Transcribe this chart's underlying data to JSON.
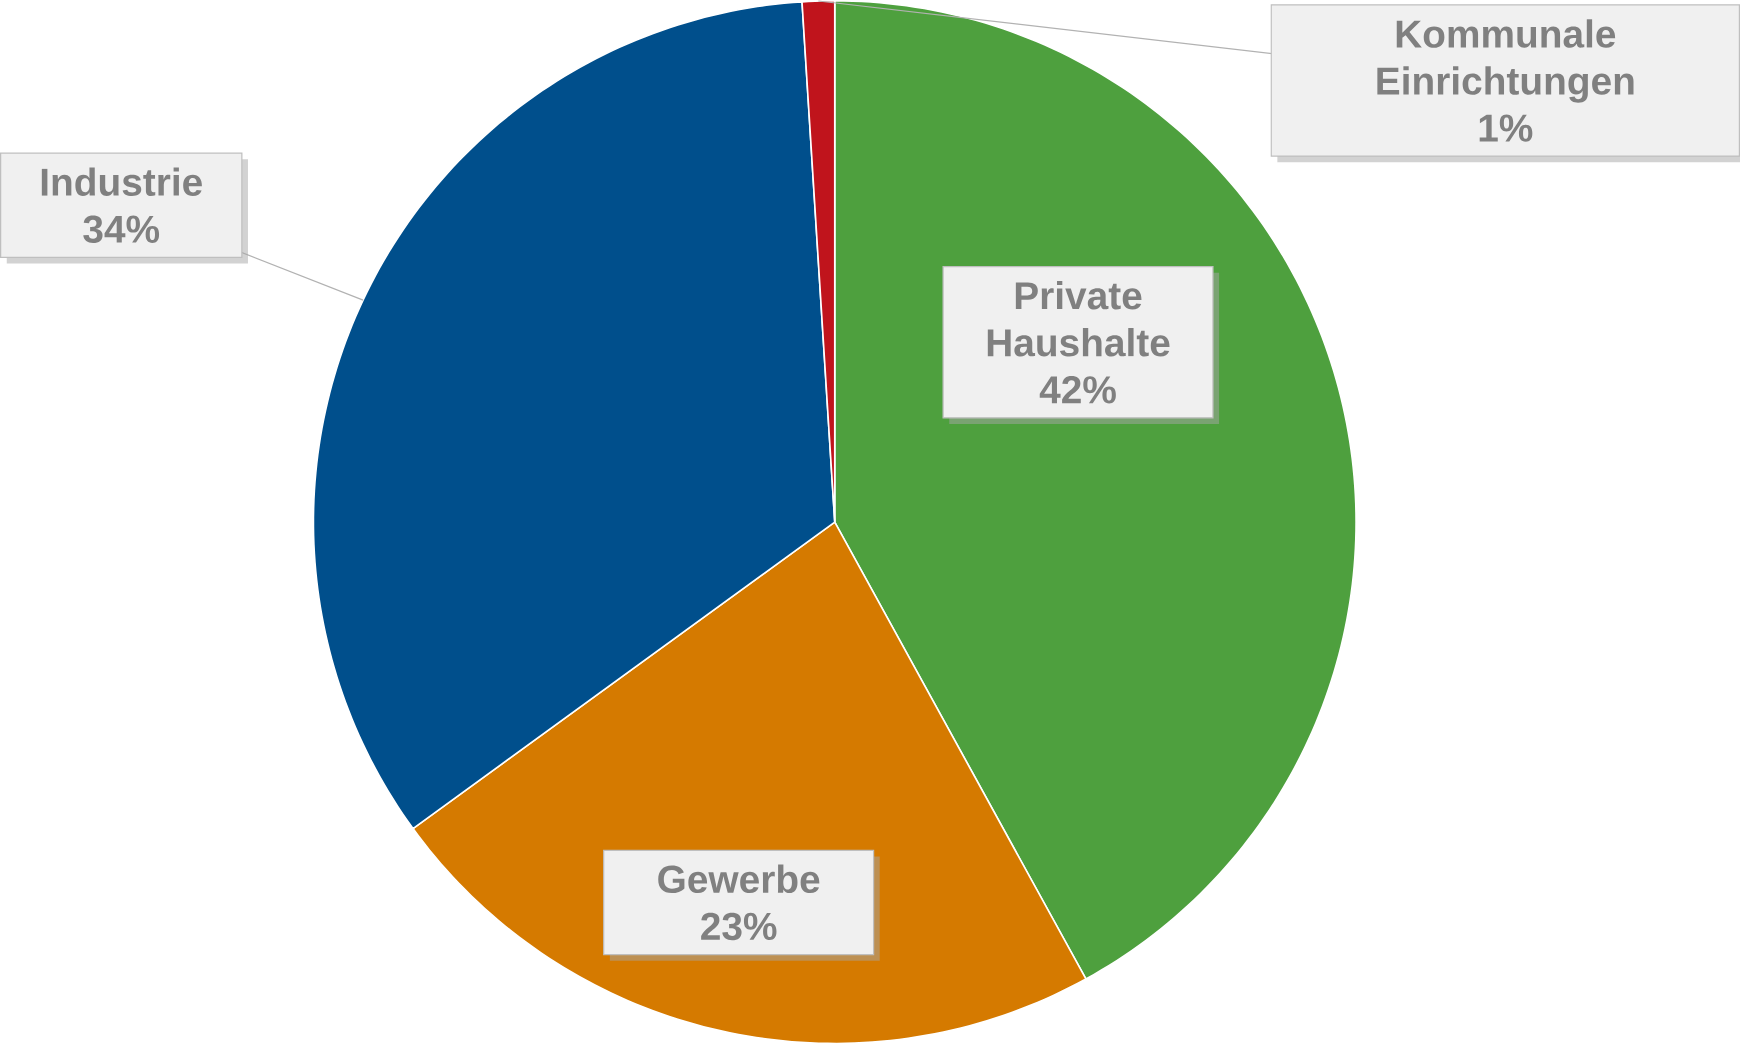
{
  "chart_data": {
    "type": "pie",
    "categories": [
      "Private Haushalte",
      "Gewerbe",
      "Industrie",
      "Kommunale Einrichtungen"
    ],
    "values": [
      42,
      23,
      34,
      1
    ],
    "value_labels": [
      "42%",
      "23%",
      "34%",
      "1%"
    ],
    "colors": [
      "#4ea03e",
      "#d57a00",
      "#004f8c",
      "#c0141c"
    ]
  }
}
